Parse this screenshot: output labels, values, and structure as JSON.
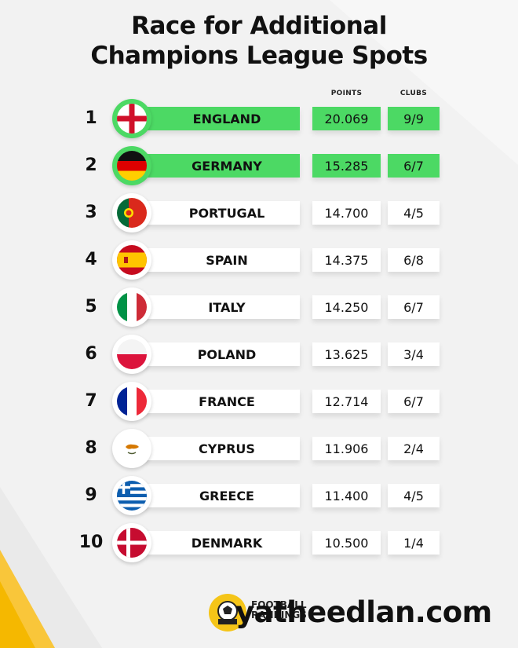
{
  "title": {
    "line1": "Race for Additional",
    "line2": "Champions League Spots"
  },
  "columns": {
    "points": "POINTS",
    "clubs": "CLUBS"
  },
  "highlight_color": "#4cd964",
  "rows": [
    {
      "rank": "1",
      "country": "ENGLAND",
      "points": "20.069",
      "clubs": "9/9",
      "highlighted": true,
      "flag": "england-flag-icon"
    },
    {
      "rank": "2",
      "country": "GERMANY",
      "points": "15.285",
      "clubs": "6/7",
      "highlighted": true,
      "flag": "germany-flag-icon"
    },
    {
      "rank": "3",
      "country": "PORTUGAL",
      "points": "14.700",
      "clubs": "4/5",
      "highlighted": false,
      "flag": "portugal-flag-icon"
    },
    {
      "rank": "4",
      "country": "SPAIN",
      "points": "14.375",
      "clubs": "6/8",
      "highlighted": false,
      "flag": "spain-flag-icon"
    },
    {
      "rank": "5",
      "country": "ITALY",
      "points": "14.250",
      "clubs": "6/7",
      "highlighted": false,
      "flag": "italy-flag-icon"
    },
    {
      "rank": "6",
      "country": "POLAND",
      "points": "13.625",
      "clubs": "3/4",
      "highlighted": false,
      "flag": "poland-flag-icon"
    },
    {
      "rank": "7",
      "country": "FRANCE",
      "points": "12.714",
      "clubs": "6/7",
      "highlighted": false,
      "flag": "france-flag-icon"
    },
    {
      "rank": "8",
      "country": "CYPRUS",
      "points": "11.906",
      "clubs": "2/4",
      "highlighted": false,
      "flag": "cyprus-flag-icon"
    },
    {
      "rank": "9",
      "country": "GREECE",
      "points": "11.400",
      "clubs": "4/5",
      "highlighted": false,
      "flag": "greece-flag-icon"
    },
    {
      "rank": "10",
      "country": "DENMARK",
      "points": "10.500",
      "clubs": "1/4",
      "highlighted": false,
      "flag": "denmark-flag-icon"
    }
  ],
  "footer": {
    "brand_line1": "FOOTBALL",
    "brand_line2": "RANKINGS",
    "watermark": "yatheedlan.com"
  }
}
